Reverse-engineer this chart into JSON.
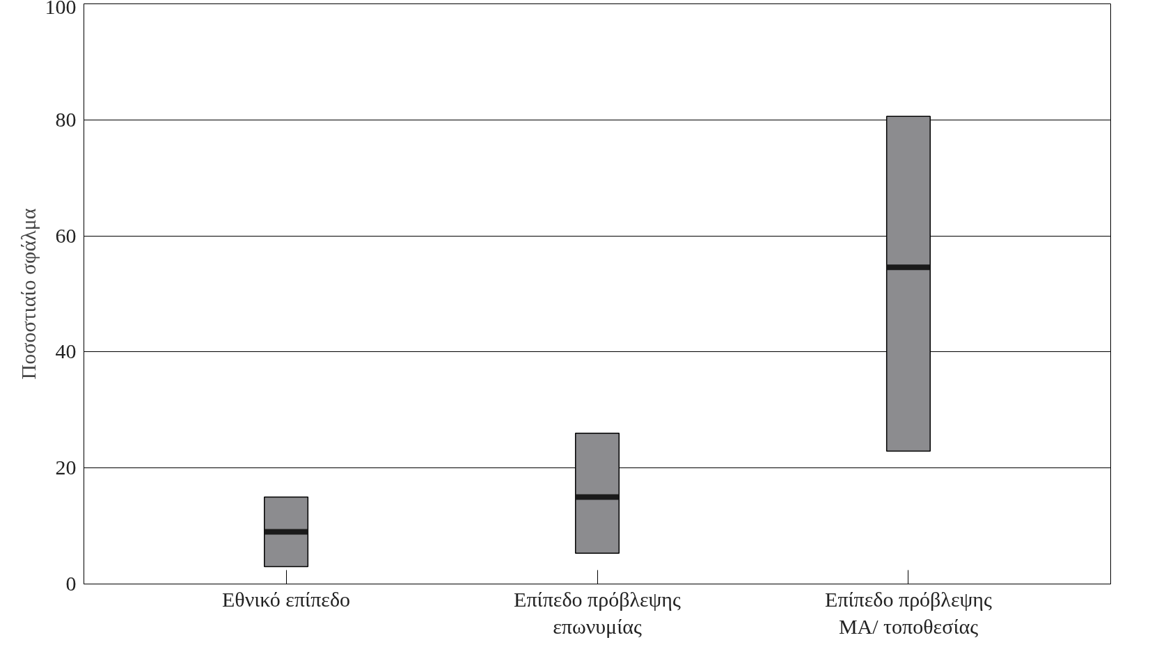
{
  "chart_data": {
    "type": "box",
    "ylabel": "Ποσοστιαίο σφάλμα",
    "categories": [
      "Εθνικό επίπεδο",
      "Επίπεδο πρόβλεψης επωνυμίας",
      "Επίπεδο πρόβλεψης ΜΑ/ τοποθεσίας"
    ],
    "series": [
      {
        "color": "#8c8c8f",
        "boxes": [
          {
            "low": 3,
            "q1": 3,
            "median": 9,
            "q3": 15,
            "high": 15
          },
          {
            "low": 5.3,
            "q1": 5.3,
            "median": 15,
            "q3": 26,
            "high": 26
          },
          {
            "low": 22.9,
            "q1": 22.9,
            "median": 54.6,
            "q3": 80.6,
            "high": 80.6
          }
        ]
      }
    ],
    "ylim": [
      0,
      100
    ],
    "yticks": [
      0,
      20,
      40,
      60,
      80,
      100
    ],
    "grid": "y"
  }
}
